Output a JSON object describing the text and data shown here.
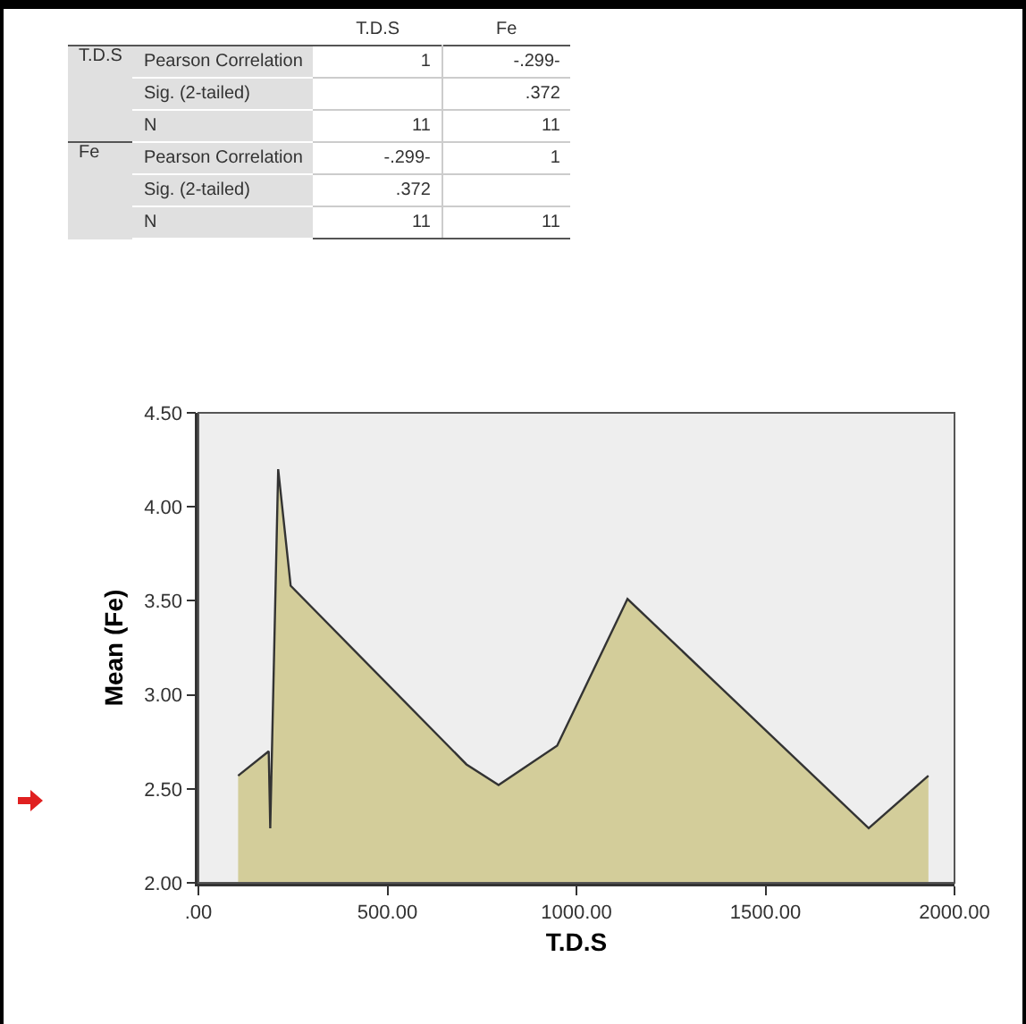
{
  "chart_data": [
    {
      "type": "other",
      "categories": [
        "T.D.S",
        "Fe"
      ],
      "annotations": [
        "T.D.S",
        "Fe"
      ],
      "y_categories": [
        "Pearson Correlation",
        "Sig. (2-tailed)",
        "N",
        "Pearson Correlation",
        "Sig. (2-tailed)",
        "N"
      ],
      "cell_labels": [
        [
          "1",
          "-.299-"
        ],
        [
          null,
          ".372"
        ],
        [
          "11",
          "11"
        ],
        [
          "-.299-",
          "1"
        ],
        [
          ".372",
          null
        ],
        [
          "11",
          "11"
        ]
      ]
    },
    {
      "type": "area",
      "xlabel": "T.D.S",
      "ylabel": "Mean (Fe)",
      "x": [
        105,
        186,
        190,
        211,
        244,
        709,
        794,
        949,
        1135,
        1773,
        1931
      ],
      "series": [
        {
          "color": "#d3cd9a",
          "values": [
            2.57,
            2.7,
            2.29,
            4.2,
            3.58,
            2.63,
            2.52,
            2.73,
            3.51,
            2.29,
            2.57
          ]
        }
      ],
      "xlim": [
        0,
        2000
      ],
      "xticks": [
        {
          "value": 0,
          "label": ".00"
        },
        {
          "value": 500,
          "label": "500.00"
        },
        {
          "value": 1000,
          "label": "1000.00"
        },
        {
          "value": 1500,
          "label": "1500.00"
        },
        {
          "value": 2000,
          "label": "2000.00"
        }
      ],
      "ylim": [
        2,
        4.5
      ],
      "yticks": [
        {
          "value": 2,
          "label": "2.00"
        },
        {
          "value": 2.5,
          "label": "2.50"
        },
        {
          "value": 3,
          "label": "3.00"
        },
        {
          "value": 3.5,
          "label": "3.50"
        },
        {
          "value": 4,
          "label": "4.00"
        },
        {
          "value": 4.5,
          "label": "4.50"
        }
      ]
    }
  ]
}
